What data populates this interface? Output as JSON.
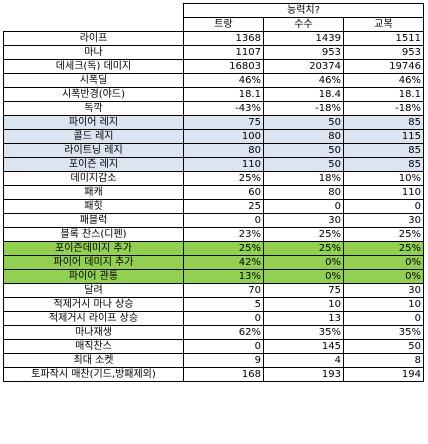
{
  "sheet": {
    "title": "능력치?",
    "columns": [
      "트랑",
      "수수",
      "교복"
    ],
    "highlight_colors": {
      "blue": "#dbe5f1",
      "green": "#92d050"
    },
    "rows": [
      {
        "label": "라이프",
        "values": [
          "1368",
          "1439",
          "1511"
        ],
        "highlight": ""
      },
      {
        "label": "마나",
        "values": [
          "1107",
          "953",
          "953"
        ],
        "highlight": ""
      },
      {
        "label": "데세크(독) 데미지",
        "values": [
          "16803",
          "20374",
          "19746"
        ],
        "highlight": ""
      },
      {
        "label": "시폭딜",
        "values": [
          "46%",
          "46%",
          "46%"
        ],
        "highlight": ""
      },
      {
        "label": "시폭반경(야드)",
        "values": [
          "18.1",
          "18.4",
          "18.1"
        ],
        "highlight": ""
      },
      {
        "label": "독깍",
        "values": [
          "-43%",
          "-18%",
          "-18%"
        ],
        "highlight": ""
      },
      {
        "label": "파이어 레지",
        "values": [
          "75",
          "50",
          "85"
        ],
        "highlight": "blue"
      },
      {
        "label": "콜드 레지",
        "values": [
          "100",
          "80",
          "115"
        ],
        "highlight": "blue"
      },
      {
        "label": "라이트닝 레지",
        "values": [
          "80",
          "50",
          "85"
        ],
        "highlight": "blue"
      },
      {
        "label": "포이즌 레지",
        "values": [
          "110",
          "50",
          "85"
        ],
        "highlight": "blue"
      },
      {
        "label": "데미지감소",
        "values": [
          "25%",
          "18%",
          "10%"
        ],
        "highlight": ""
      },
      {
        "label": "패캐",
        "values": [
          "60",
          "80",
          "110"
        ],
        "highlight": ""
      },
      {
        "label": "패힛",
        "values": [
          "25",
          "0",
          "0"
        ],
        "highlight": ""
      },
      {
        "label": "패블럭",
        "values": [
          "0",
          "30",
          "30"
        ],
        "highlight": ""
      },
      {
        "label": "블록 찬스(디펜)",
        "values": [
          "23%",
          "25%",
          "25%"
        ],
        "highlight": ""
      },
      {
        "label": "포이즌데미지 추가",
        "values": [
          "25%",
          "25%",
          "25%"
        ],
        "highlight": "green"
      },
      {
        "label": "파이어 데미지 추가",
        "values": [
          "42%",
          "0%",
          "0%"
        ],
        "highlight": "green"
      },
      {
        "label": "파이어 관통",
        "values": [
          "13%",
          "0%",
          "0%"
        ],
        "highlight": "green"
      },
      {
        "label": "달려",
        "values": [
          "70",
          "75",
          "30"
        ],
        "highlight": ""
      },
      {
        "label": "적제거시 마나 상승",
        "values": [
          "5",
          "10",
          "10"
        ],
        "highlight": ""
      },
      {
        "label": "적제거시 라이프 상승",
        "values": [
          "0",
          "13",
          "0"
        ],
        "highlight": ""
      },
      {
        "label": "마나재생",
        "values": [
          "62%",
          "35%",
          "35%"
        ],
        "highlight": ""
      },
      {
        "label": "매직찬스",
        "values": [
          "0",
          "145",
          "50"
        ],
        "highlight": ""
      },
      {
        "label": "최대 소켓",
        "values": [
          "9",
          "4",
          "8"
        ],
        "highlight": ""
      },
      {
        "label": "토파작시 매찬(기드,방패제외)",
        "values": [
          "168",
          "193",
          "194"
        ],
        "highlight": ""
      }
    ]
  }
}
